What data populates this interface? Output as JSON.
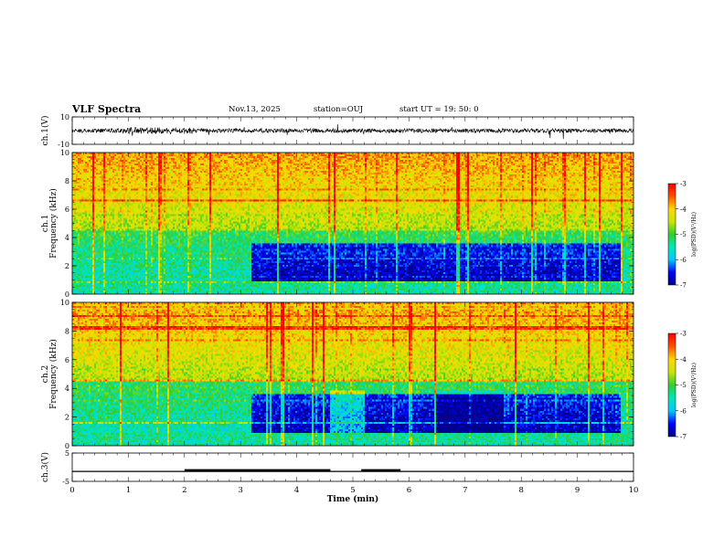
{
  "header": {
    "title": "VLF Spectra",
    "date": "Nov.13, 2025",
    "station": "station=OUJ",
    "start_ut": "start  UT =   19: 50: 0"
  },
  "colors": {
    "spectrogram_colormap": [
      "#00008b",
      "#0000ff",
      "#00c8ff",
      "#00e6b4",
      "#32cd32",
      "#c8e600",
      "#ffd700",
      "#ff5000",
      "#ff0000"
    ],
    "waveform": "#000000",
    "axes": "#000000"
  },
  "chart_data": [
    {
      "type": "line",
      "name": "ch1-waveform",
      "ylabel": "ch.1(V)",
      "yticks": [
        "10",
        "-10"
      ],
      "ylim": [
        -10,
        10
      ],
      "xlim": [
        0,
        10
      ],
      "baseline_V": 0,
      "description_values": {
        "typical_amplitude_V": 1.5,
        "max_spike_V": 5
      }
    },
    {
      "type": "heatmap",
      "name": "ch1-spectrogram",
      "ylabel_line1": "ch.1",
      "ylabel_line2": "Frequency  (kHz)",
      "yticks": [
        "0",
        "2",
        "4",
        "6",
        "8",
        "10"
      ],
      "ylim": [
        0,
        10
      ],
      "xlim": [
        0,
        10
      ],
      "colorbar": {
        "label": "log(PSD)(V²/Hz)",
        "ticks": [
          "-3",
          "-4",
          "-5",
          "-6",
          "-7"
        ],
        "range": [
          -7,
          -3
        ]
      },
      "quiet_band_kHz": [
        0.8,
        3.6
      ],
      "quiet_interval_min": [
        3.2,
        9.8
      ]
    },
    {
      "type": "heatmap",
      "name": "ch2-spectrogram",
      "ylabel_line1": "ch.2",
      "ylabel_line2": "Frequency  (kHz)",
      "yticks": [
        "0",
        "2",
        "4",
        "6",
        "8",
        "10"
      ],
      "ylim": [
        0,
        10
      ],
      "xlim": [
        0,
        10
      ],
      "colorbar": {
        "label": "log(PSD)(V²/Hz)",
        "ticks": [
          "-3",
          "-4",
          "-5",
          "-6",
          "-7"
        ],
        "range": [
          -7,
          -3
        ]
      },
      "quiet_band_kHz": [
        0.8,
        3.6
      ],
      "quiet_interval_min": [
        3.2,
        9.8
      ]
    },
    {
      "type": "line",
      "name": "ch3-trigger",
      "ylabel": "ch.3(V)",
      "yticks": [
        "5",
        "-5"
      ],
      "ylim": [
        -5,
        5
      ],
      "xlim": [
        0,
        10
      ],
      "baseline_V": -1.5,
      "thick_segments_min": [
        [
          2.0,
          4.6
        ],
        [
          5.15,
          5.85
        ]
      ]
    }
  ],
  "xaxis": {
    "label": "Time  (min)",
    "ticks": [
      "0",
      "1",
      "2",
      "3",
      "4",
      "5",
      "6",
      "7",
      "8",
      "9",
      "10"
    ],
    "range": [
      0,
      10
    ]
  }
}
